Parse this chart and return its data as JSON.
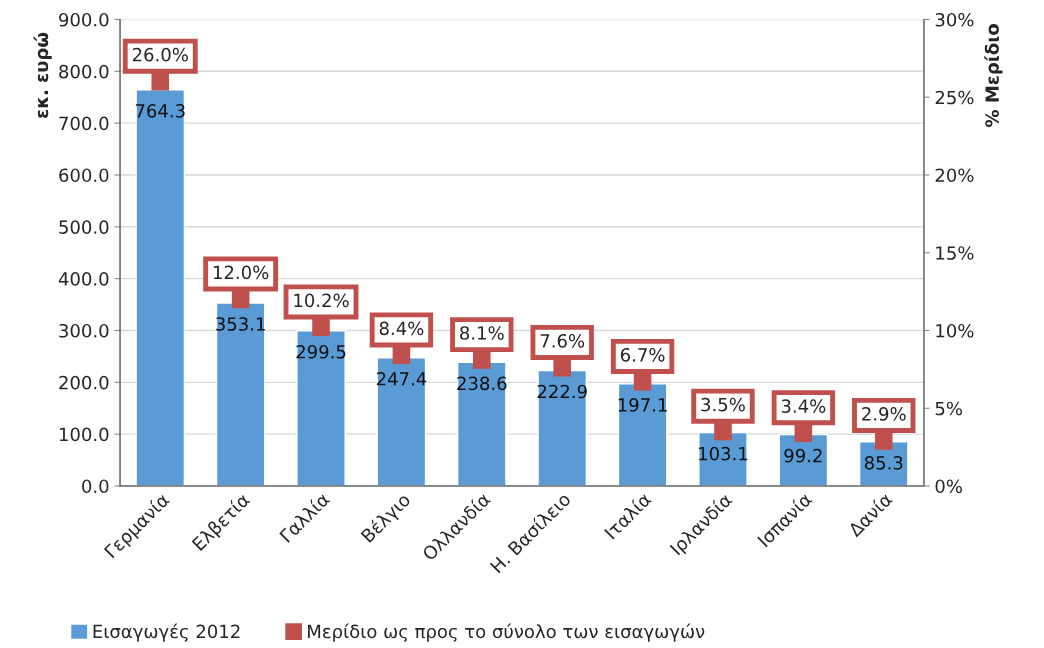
{
  "chart_data": {
    "type": "bar",
    "categories": [
      "Γερμανία",
      "Ελβετία",
      "Γαλλία",
      "Βέλγιο",
      "Ολλανδία",
      "Η. Βασίλειο",
      "Ιταλία",
      "Ιρλανδία",
      "Ισπανία",
      "Δανία"
    ],
    "ylabel": "εκ. ευρώ",
    "y2label": "% Μερίδιο",
    "series": [
      {
        "name": "Εισαγωγές 2012",
        "color": "#5b9bd5",
        "values": [
          764.3,
          353.1,
          299.5,
          247.4,
          238.6,
          222.9,
          197.1,
          103.1,
          99.2,
          85.3
        ],
        "value_labels": [
          "764.3",
          "353.1",
          "299.5",
          "247.4",
          "238.6",
          "222.9",
          "197.1",
          "103.1",
          "99.2",
          "85.3"
        ]
      },
      {
        "name": "Μερίδιο ως προς το σύνολο των εισαγωγών",
        "type": "scatter",
        "axis": "y2",
        "marker": "square",
        "color": "#c0504d",
        "values": [
          26.0,
          12.0,
          10.2,
          8.4,
          8.1,
          7.6,
          6.7,
          3.5,
          3.4,
          2.9
        ],
        "value_labels": [
          "26.0%",
          "12.0%",
          "10.2%",
          "8.4%",
          "8.1%",
          "7.6%",
          "6.7%",
          "3.5%",
          "3.4%",
          "2.9%"
        ]
      }
    ],
    "ylim": [
      0,
      900
    ],
    "yticks": [
      {
        "value": 0,
        "label": "0.0"
      },
      {
        "value": 100,
        "label": "100.0"
      },
      {
        "value": 200,
        "label": "200.0"
      },
      {
        "value": 300,
        "label": "300.0"
      },
      {
        "value": 400,
        "label": "400.0"
      },
      {
        "value": 500,
        "label": "500.0"
      },
      {
        "value": 600,
        "label": "600.0"
      },
      {
        "value": 700,
        "label": "700.0"
      },
      {
        "value": 800,
        "label": "800.0"
      },
      {
        "value": 900,
        "label": "900.0"
      }
    ],
    "y2lim": [
      0,
      30
    ],
    "y2ticks": [
      {
        "value": 0,
        "label": "0%"
      },
      {
        "value": 5,
        "label": "5%"
      },
      {
        "value": 10,
        "label": "10%"
      },
      {
        "value": 15,
        "label": "15%"
      },
      {
        "value": 20,
        "label": "20%"
      },
      {
        "value": 25,
        "label": "25%"
      },
      {
        "value": 30,
        "label": "30%"
      }
    ],
    "grid": "y",
    "legend": "bottom"
  }
}
